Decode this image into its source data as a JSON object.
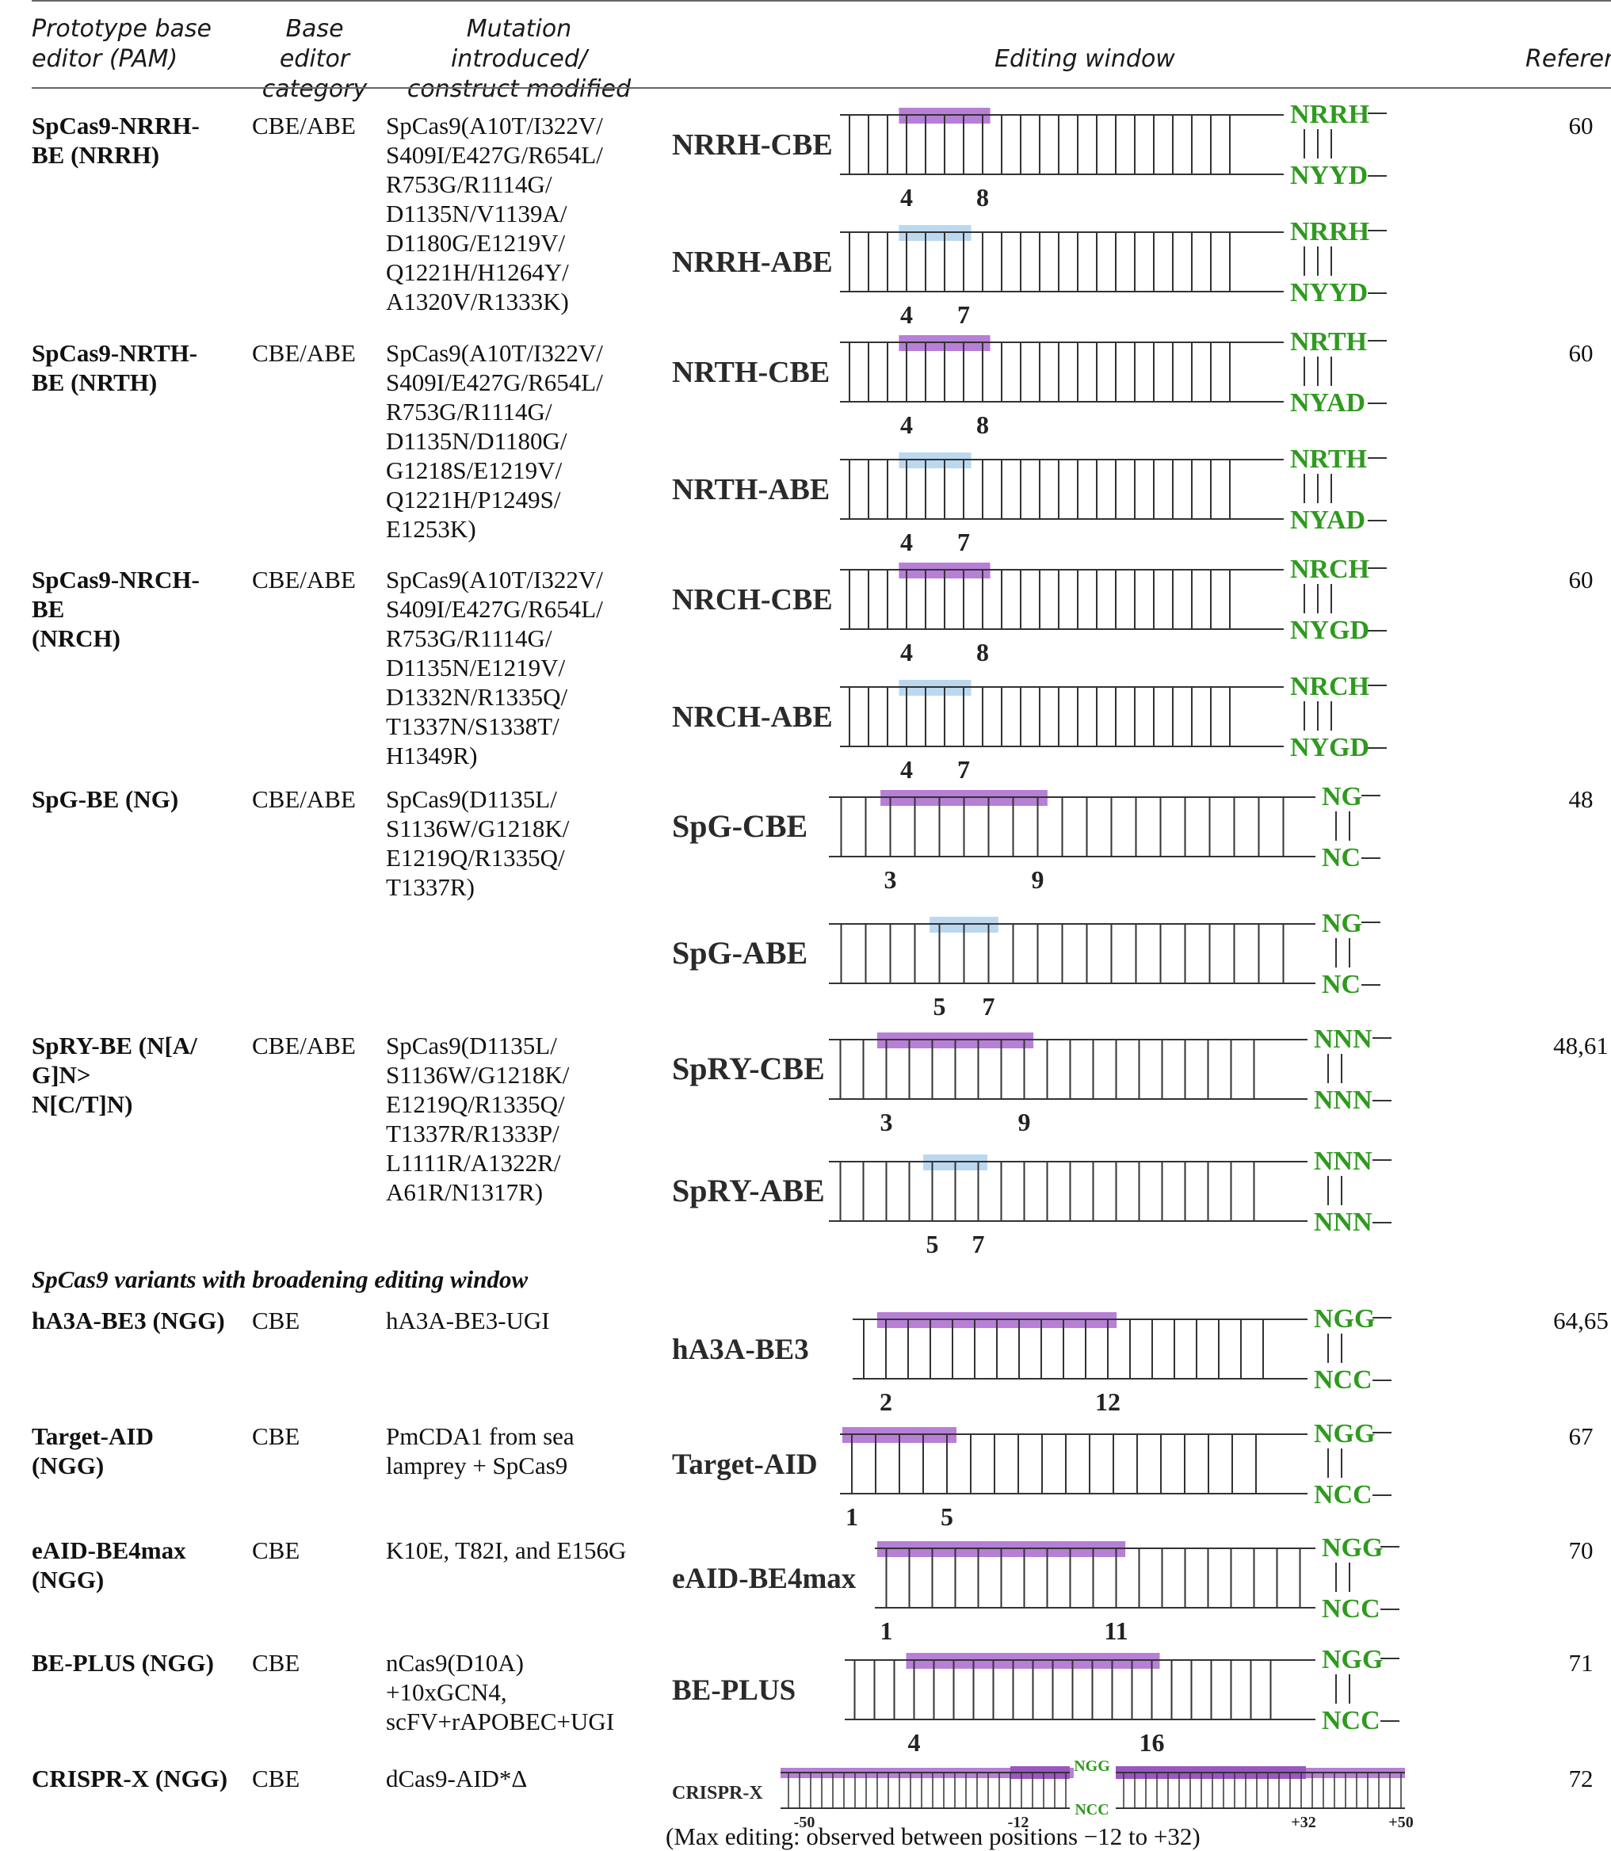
{
  "headers": {
    "prototype": [
      "Prototype base",
      "editor (PAM)"
    ],
    "category": [
      "Base editor",
      "category"
    ],
    "mutation": [
      "Mutation introduced/",
      "construct modified"
    ],
    "window": "Editing window",
    "reference": "Referen"
  },
  "rows": [
    {
      "prototype": [
        "SpCas9-NRRH-",
        "BE (NRRH)"
      ],
      "category": "CBE/ABE",
      "mutation": [
        "SpCas9(A10T/I322V/",
        "S409I/E427G/R654L/",
        "R753G/R1114G/",
        "D1135N/V1139A/",
        "D1180G/E1219V/",
        "Q1221H/H1264Y/",
        "A1320V/R1333K)"
      ],
      "reference": "60"
    },
    {
      "prototype": [
        "SpCas9-NRTH-",
        "BE (NRTH)"
      ],
      "category": "CBE/ABE",
      "mutation": [
        "SpCas9(A10T/I322V/",
        "S409I/E427G/R654L/",
        "R753G/R1114G/",
        "D1135N/D1180G/",
        "G1218S/E1219V/",
        "Q1221H/P1249S/",
        "E1253K)"
      ],
      "reference": "60"
    },
    {
      "prototype": [
        "SpCas9-NRCH-",
        "BE",
        "(NRCH)"
      ],
      "category": "CBE/ABE",
      "mutation": [
        "SpCas9(A10T/I322V/",
        "S409I/E427G/R654L/",
        "R753G/R1114G/",
        "D1135N/E1219V/",
        "D1332N/R1335Q/",
        "T1337N/S1338T/",
        "H1349R)"
      ],
      "reference": "60"
    },
    {
      "prototype": [
        "SpG-BE (NG)"
      ],
      "category": "CBE/ABE",
      "mutation": [
        "SpCas9(D1135L/",
        "S1136W/G1218K/",
        "E1219Q/R1335Q/",
        "T1337R)"
      ],
      "reference": "48"
    },
    {
      "prototype": [
        "SpRY-BE (N[A/",
        "G]N>",
        "N[C/T]N)"
      ],
      "category": "CBE/ABE",
      "mutation": [
        "SpCas9(D1135L/",
        "S1136W/G1218K/",
        "E1219Q/R1335Q/",
        "T1337R/R1333P/",
        "L1111R/A1322R/",
        "A61R/N1317R)"
      ],
      "reference": "48,61"
    }
  ],
  "section_title": "SpCas9 variants with broadening editing window",
  "rows2": [
    {
      "prototype": [
        "hA3A-BE3 (NGG)"
      ],
      "category": "CBE",
      "mutation": [
        "hA3A-BE3-UGI"
      ],
      "reference": "64,65"
    },
    {
      "prototype": [
        "Target-AID",
        "(NGG)"
      ],
      "category": "CBE",
      "mutation": [
        "PmCDA1 from sea",
        "lamprey + SpCas9"
      ],
      "reference": "67"
    },
    {
      "prototype": [
        "eAID-BE4max",
        "(NGG)"
      ],
      "category": "CBE",
      "mutation": [
        "K10E, T82I, and E156G"
      ],
      "reference": "70"
    },
    {
      "prototype": [
        "BE-PLUS (NGG)"
      ],
      "category": "CBE",
      "mutation": [
        "nCas9(D10A)",
        "+10xGCN4,",
        "scFV+rAPOBEC+UGI"
      ],
      "reference": "71"
    },
    {
      "prototype": [
        "CRISPR-X (NGG)"
      ],
      "category": "CBE",
      "mutation": [
        "dCas9-AID*Δ"
      ],
      "reference": "72"
    }
  ],
  "diagrams": [
    {
      "label": "NRRH-CBE",
      "kind": "CBE",
      "pam_top": "NRRH",
      "pam_bottom": "NYYD",
      "start": 4,
      "end": 8,
      "start_label": "4",
      "end_label": "8"
    },
    {
      "label": "NRRH-ABE",
      "kind": "ABE",
      "pam_top": "NRRH",
      "pam_bottom": "NYYD",
      "start": 4,
      "end": 7,
      "start_label": "4",
      "end_label": "7"
    },
    {
      "label": "NRTH-CBE",
      "kind": "CBE",
      "pam_top": "NRTH",
      "pam_bottom": "NYAD",
      "start": 4,
      "end": 8,
      "start_label": "4",
      "end_label": "8"
    },
    {
      "label": "NRTH-ABE",
      "kind": "ABE",
      "pam_top": "NRTH",
      "pam_bottom": "NYAD",
      "start": 4,
      "end": 7,
      "start_label": "4",
      "end_label": "7"
    },
    {
      "label": "NRCH-CBE",
      "kind": "CBE",
      "pam_top": "NRCH",
      "pam_bottom": "NYGD",
      "start": 4,
      "end": 8,
      "start_label": "4",
      "end_label": "8"
    },
    {
      "label": "NRCH-ABE",
      "kind": "ABE",
      "pam_top": "NRCH",
      "pam_bottom": "NYGD",
      "start": 4,
      "end": 7,
      "start_label": "4",
      "end_label": "7"
    },
    {
      "label": "SpG-CBE",
      "kind": "CBE",
      "pam_top": "NG",
      "pam_bottom": "NC",
      "start": 3,
      "end": 9,
      "start_label": "3",
      "end_label": "9"
    },
    {
      "label": "SpG-ABE",
      "kind": "ABE",
      "pam_top": "NG",
      "pam_bottom": "NC",
      "start": 5,
      "end": 7,
      "start_label": "5",
      "end_label": "7"
    },
    {
      "label": "SpRY-CBE",
      "kind": "CBE",
      "pam_top": "NNN",
      "pam_bottom": "NNN",
      "start": 3,
      "end": 9,
      "start_label": "3",
      "end_label": "9"
    },
    {
      "label": "SpRY-ABE",
      "kind": "ABE",
      "pam_top": "NNN",
      "pam_bottom": "NNN",
      "start": 5,
      "end": 7,
      "start_label": "5",
      "end_label": "7"
    },
    {
      "label": "hA3A-BE3",
      "kind": "CBE",
      "pam_top": "NGG",
      "pam_bottom": "NCC",
      "start": 2,
      "end": 12,
      "start_label": "2",
      "end_label": "12"
    },
    {
      "label": "Target-AID",
      "kind": "CBE",
      "pam_top": "NGG",
      "pam_bottom": "NCC",
      "start": 1,
      "end": 5,
      "start_label": "1",
      "end_label": "5"
    },
    {
      "label": "eAID-BE4max",
      "kind": "CBE",
      "pam_top": "NGG",
      "pam_bottom": "NCC",
      "start": 1,
      "end": 11,
      "start_label": "1",
      "end_label": "11"
    },
    {
      "label": "BE-PLUS",
      "kind": "CBE",
      "pam_top": "NGG",
      "pam_bottom": "NCC",
      "start": 4,
      "end": 16,
      "start_label": "4",
      "end_label": "16"
    }
  ],
  "crisprx": {
    "label": "CRISPR-X",
    "pam_top": "NGG",
    "pam_bottom": "NCC",
    "ticks": [
      "-50",
      "-12",
      "+32",
      "+50"
    ],
    "note": "(Max editing: observed between positions −12 to +32)"
  },
  "colors": {
    "cbe": "#b77fd6",
    "abe": "#bcd8ef",
    "pam": "#2f9a1f",
    "line": "#333333"
  }
}
